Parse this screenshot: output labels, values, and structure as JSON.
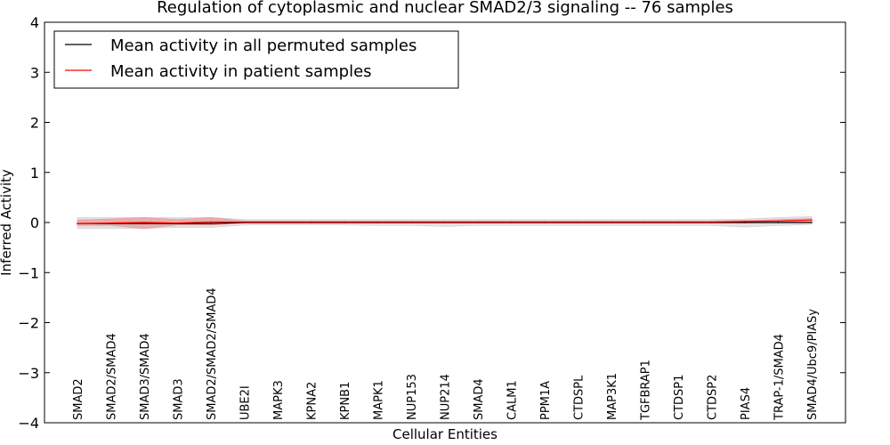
{
  "chart_data": {
    "type": "line",
    "title": "Regulation of cytoplasmic and nuclear SMAD2/3 signaling -- 76 samples",
    "xlabel": "Cellular Entities",
    "ylabel": "Inferred Activity",
    "ylim": [
      -4,
      4
    ],
    "yticks": [
      -4,
      -3,
      -2,
      -1,
      0,
      1,
      2,
      3,
      4
    ],
    "ytick_labels": [
      "−4",
      "−3",
      "−2",
      "−1",
      "0",
      "1",
      "2",
      "3",
      "4"
    ],
    "categories": [
      "SMAD2",
      "SMAD2/SMAD4",
      "SMAD3/SMAD4",
      "SMAD3",
      "SMAD2/SMAD2/SMAD4",
      "UBE2I",
      "MAPK3",
      "KPNA2",
      "KPNB1",
      "MAPK1",
      "NUP153",
      "NUP214",
      "SMAD4",
      "CALM1",
      "PPM1A",
      "CTDSPL",
      "MAP3K1",
      "TGFBRAP1",
      "CTDSP1",
      "CTDSP2",
      "PIAS4",
      "TRAP-1/SMAD4",
      "SMAD4/Ubc9/PIASy"
    ],
    "legend": {
      "location": "upper-left",
      "entries": [
        "Mean activity in all permuted samples",
        "Mean activity in patient samples"
      ]
    },
    "colors": {
      "permuted_line": "#000000",
      "patient_line": "#ff0000",
      "permuted_band": "#bfbfbf",
      "patient_band": "#f08080"
    },
    "series": [
      {
        "name": "Mean activity in all permuted samples",
        "values": [
          -0.02,
          -0.02,
          -0.02,
          -0.02,
          -0.02,
          0.0,
          0.0,
          0.0,
          0.0,
          0.0,
          0.0,
          0.0,
          0.0,
          0.0,
          0.0,
          0.0,
          0.0,
          0.0,
          0.0,
          0.0,
          0.0,
          0.0,
          0.0
        ],
        "band_upper": [
          0.1,
          0.1,
          0.1,
          0.1,
          0.1,
          0.06,
          0.06,
          0.06,
          0.06,
          0.06,
          0.06,
          0.06,
          0.06,
          0.06,
          0.06,
          0.06,
          0.06,
          0.06,
          0.06,
          0.06,
          0.07,
          0.1,
          0.12
        ],
        "band_lower": [
          -0.12,
          -0.12,
          -0.12,
          -0.1,
          -0.1,
          -0.05,
          -0.05,
          -0.05,
          -0.05,
          -0.06,
          -0.06,
          -0.08,
          -0.06,
          -0.06,
          -0.06,
          -0.06,
          -0.06,
          -0.06,
          -0.06,
          -0.06,
          -0.09,
          -0.06,
          -0.04
        ]
      },
      {
        "name": "Mean activity in patient samples",
        "values": [
          -0.02,
          -0.01,
          0.0,
          -0.01,
          0.01,
          0.01,
          0.01,
          0.01,
          0.01,
          0.01,
          0.01,
          0.01,
          0.01,
          0.01,
          0.01,
          0.01,
          0.01,
          0.01,
          0.01,
          0.01,
          0.02,
          0.03,
          0.05
        ],
        "band_upper": [
          0.05,
          0.07,
          0.1,
          0.06,
          0.1,
          0.03,
          0.03,
          0.03,
          0.03,
          0.03,
          0.03,
          0.03,
          0.03,
          0.03,
          0.03,
          0.03,
          0.03,
          0.03,
          0.03,
          0.03,
          0.04,
          0.06,
          0.08
        ],
        "band_lower": [
          -0.06,
          -0.06,
          -0.12,
          -0.05,
          -0.05,
          -0.01,
          -0.01,
          -0.01,
          -0.01,
          -0.01,
          -0.01,
          -0.01,
          -0.01,
          -0.01,
          -0.01,
          -0.01,
          -0.01,
          -0.01,
          -0.01,
          -0.01,
          -0.01,
          0.0,
          0.02
        ]
      }
    ]
  }
}
